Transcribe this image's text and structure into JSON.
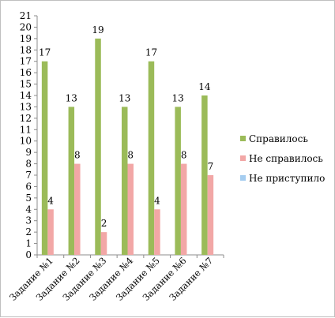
{
  "chart_data": {
    "type": "bar",
    "categories": [
      "Задание №1",
      "Задание №2",
      "Задание №3",
      "Задание №4",
      "Задание №5",
      "Задание №6",
      "Задание №7"
    ],
    "series": [
      {
        "name": "Справилось",
        "values": [
          17,
          13,
          19,
          13,
          17,
          13,
          14
        ],
        "color": "#9bbb59"
      },
      {
        "name": "Не справилось",
        "values": [
          4,
          8,
          2,
          8,
          4,
          8,
          7
        ],
        "color": "#f2a7a6"
      },
      {
        "name": "Не приступило",
        "values": [
          0,
          0,
          0,
          0,
          0,
          0,
          0
        ],
        "color": "#a5cdf0"
      }
    ],
    "data_labels": [
      [
        17,
        13,
        19,
        13,
        17,
        13,
        14
      ],
      [
        4,
        8,
        2,
        8,
        4,
        8,
        7
      ]
    ],
    "ylim": [
      0,
      21
    ],
    "ytick_step": 1,
    "grid": false,
    "legend_position": "right"
  }
}
